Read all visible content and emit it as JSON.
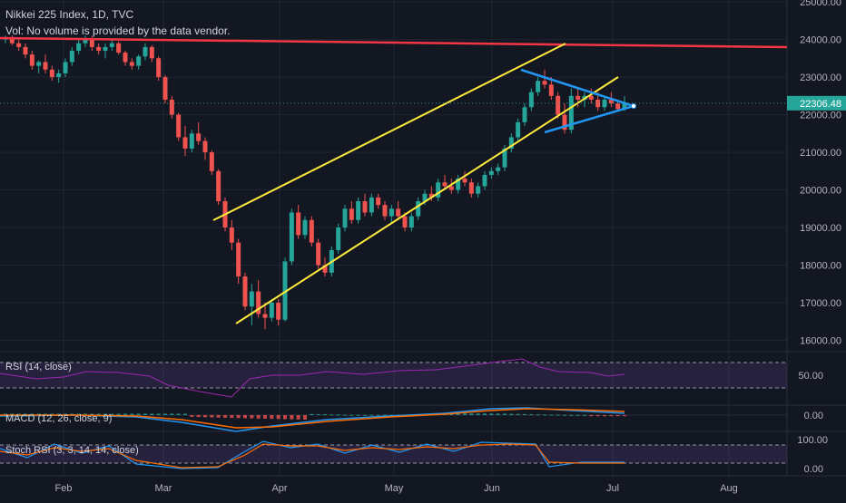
{
  "header": {
    "symbol_line": "Nikkei 225 Index, 1D, TVC",
    "volume_note": "Vol: No volume is provided by the data vendor."
  },
  "colors": {
    "background": "#131722",
    "grid": "#1f2433",
    "up": "#26a69a",
    "down": "#ef5350",
    "trendline_yellow": "#ffeb3b",
    "triangle_blue": "#2196f3",
    "resistance_red": "#f23645",
    "price_label_bg": "#26a69a",
    "rsi": "#9c27b0",
    "macd": "#2196f3",
    "signal": "#ff6d00",
    "stoch_k": "#2196f3",
    "stoch_d": "#ff6d00",
    "band_fill": "#7e57c2"
  },
  "indicators": {
    "rsi_label": "RSI (14, close)",
    "macd_label": "MACD (12, 26, close, 9)",
    "stoch_label": "Stoch RSI (3, 3, 14, 14, close)"
  },
  "chart_data": {
    "type": "candlestick",
    "symbol": "Nikkei 225 Index",
    "interval": "1D",
    "source": "TVC",
    "last_price": "22306.48",
    "x_tick_labels": [
      "Feb",
      "Mar",
      "Apr",
      "May",
      "Jun",
      "Jul",
      "Aug"
    ],
    "price_axis": {
      "ticks": [
        "25000.00",
        "24000.00",
        "23000.00",
        "22000.00",
        "21000.00",
        "20000.00",
        "19000.00",
        "18000.00",
        "17000.00",
        "16000.00"
      ],
      "range": [
        15700,
        25050
      ]
    },
    "rsi_axis": {
      "ticks": [
        "50.00"
      ]
    },
    "macd_axis": {
      "ticks": [
        "0.00"
      ]
    },
    "stoch_axis": {
      "ticks": [
        "100.00",
        "0.00"
      ]
    },
    "candles": [
      [
        24000,
        24100,
        23900,
        24050
      ],
      [
        24050,
        24110,
        23850,
        23900
      ],
      [
        23900,
        24000,
        23700,
        23800
      ],
      [
        23800,
        23900,
        23500,
        23600
      ],
      [
        23600,
        23700,
        23200,
        23300
      ],
      [
        23300,
        23450,
        23100,
        23400
      ],
      [
        23400,
        23600,
        23100,
        23200
      ],
      [
        23200,
        23300,
        22900,
        23000
      ],
      [
        23000,
        23200,
        22850,
        23100
      ],
      [
        23100,
        23500,
        23000,
        23400
      ],
      [
        23400,
        23800,
        23300,
        23700
      ],
      [
        23700,
        24000,
        23600,
        23900
      ],
      [
        23900,
        24100,
        23800,
        24000
      ],
      [
        24000,
        24100,
        23700,
        23800
      ],
      [
        23800,
        23900,
        23600,
        23700
      ],
      [
        23700,
        23900,
        23500,
        23800
      ],
      [
        23800,
        24000,
        23700,
        23900
      ],
      [
        23900,
        23950,
        23600,
        23650
      ],
      [
        23650,
        23700,
        23300,
        23400
      ],
      [
        23400,
        23500,
        23200,
        23300
      ],
      [
        23300,
        23600,
        23200,
        23550
      ],
      [
        23550,
        23900,
        23450,
        23800
      ],
      [
        23800,
        23850,
        23400,
        23500
      ],
      [
        23500,
        23550,
        22900,
        23000
      ],
      [
        23000,
        23050,
        22300,
        22400
      ],
      [
        22400,
        22500,
        21900,
        22000
      ],
      [
        22000,
        22050,
        21300,
        21400
      ],
      [
        21400,
        21700,
        20900,
        21100
      ],
      [
        21100,
        21600,
        21000,
        21500
      ],
      [
        21500,
        21800,
        21200,
        21300
      ],
      [
        21300,
        21400,
        20800,
        21000
      ],
      [
        21000,
        21050,
        20400,
        20500
      ],
      [
        20500,
        20550,
        19600,
        19700
      ],
      [
        19700,
        19800,
        18900,
        19000
      ],
      [
        19000,
        19200,
        18400,
        18600
      ],
      [
        18600,
        18700,
        17500,
        17700
      ],
      [
        17700,
        17800,
        16800,
        16900
      ],
      [
        16900,
        17500,
        16400,
        17300
      ],
      [
        17300,
        17600,
        16600,
        16700
      ],
      [
        16700,
        17000,
        16300,
        16600
      ],
      [
        16600,
        17100,
        16500,
        17000
      ],
      [
        17000,
        17100,
        16400,
        16550
      ],
      [
        16550,
        18200,
        16500,
        18100
      ],
      [
        18100,
        19500,
        18000,
        19400
      ],
      [
        19400,
        19600,
        18700,
        18800
      ],
      [
        18800,
        19300,
        18700,
        19200
      ],
      [
        19200,
        19300,
        18500,
        18600
      ],
      [
        18600,
        18700,
        17900,
        18000
      ],
      [
        18000,
        18200,
        17700,
        17800
      ],
      [
        17800,
        18500,
        17700,
        18400
      ],
      [
        18400,
        19100,
        18300,
        19000
      ],
      [
        19000,
        19600,
        18900,
        19500
      ],
      [
        19500,
        19700,
        19100,
        19200
      ],
      [
        19200,
        19800,
        19100,
        19700
      ],
      [
        19700,
        19900,
        19300,
        19400
      ],
      [
        19400,
        19900,
        19300,
        19800
      ],
      [
        19800,
        19900,
        19500,
        19600
      ],
      [
        19600,
        19700,
        19200,
        19300
      ],
      [
        19300,
        19600,
        19100,
        19500
      ],
      [
        19500,
        19700,
        19200,
        19300
      ],
      [
        19300,
        19400,
        18900,
        19000
      ],
      [
        19000,
        19400,
        18900,
        19300
      ],
      [
        19300,
        19800,
        19200,
        19700
      ],
      [
        19700,
        20000,
        19600,
        19900
      ],
      [
        19900,
        20100,
        19700,
        19800
      ],
      [
        19800,
        20300,
        19700,
        20200
      ],
      [
        20200,
        20400,
        20000,
        20100
      ],
      [
        20100,
        20300,
        19900,
        20000
      ],
      [
        20000,
        20400,
        19900,
        20300
      ],
      [
        20300,
        20500,
        20100,
        20200
      ],
      [
        20200,
        20300,
        19800,
        19900
      ],
      [
        19900,
        20200,
        19800,
        20100
      ],
      [
        20100,
        20500,
        20000,
        20400
      ],
      [
        20400,
        20600,
        20300,
        20500
      ],
      [
        20500,
        20700,
        20400,
        20600
      ],
      [
        20600,
        21200,
        20500,
        21100
      ],
      [
        21100,
        21500,
        21000,
        21400
      ],
      [
        21400,
        21900,
        21300,
        21800
      ],
      [
        21800,
        22300,
        21700,
        22200
      ],
      [
        22200,
        22700,
        22100,
        22600
      ],
      [
        22600,
        23000,
        22500,
        22900
      ],
      [
        22900,
        23200,
        22700,
        22800
      ],
      [
        22800,
        23000,
        22400,
        22500
      ],
      [
        22500,
        22600,
        21900,
        22000
      ],
      [
        22000,
        22300,
        21500,
        21600
      ],
      [
        21600,
        22700,
        21500,
        22500
      ],
      [
        22500,
        22700,
        22200,
        22400
      ],
      [
        22400,
        22600,
        22200,
        22500
      ],
      [
        22500,
        22700,
        22300,
        22400
      ],
      [
        22400,
        22600,
        22100,
        22200
      ],
      [
        22200,
        22500,
        22100,
        22400
      ],
      [
        22400,
        22600,
        22200,
        22300
      ],
      [
        22300,
        22400,
        22100,
        22150
      ],
      [
        22150,
        22500,
        22100,
        22306
      ]
    ]
  }
}
